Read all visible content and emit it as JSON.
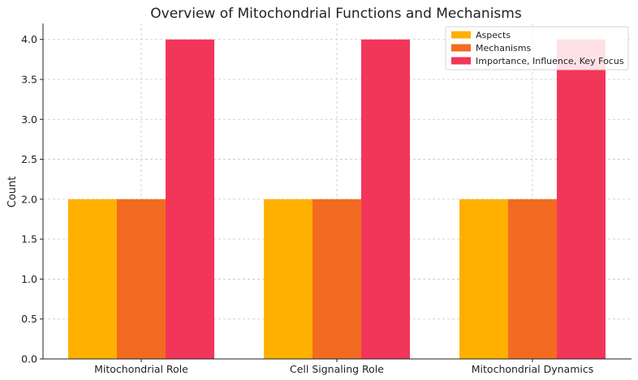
{
  "chart_data": {
    "type": "bar",
    "title": "Overview of Mitochondrial Functions and Mechanisms",
    "xlabel": "",
    "ylabel": "Count",
    "categories": [
      "Mitochondrial Role",
      "Cell Signaling Role",
      "Mitochondrial Dynamics"
    ],
    "series": [
      {
        "name": "Aspects",
        "values": [
          2,
          2,
          2
        ],
        "color": "#FFB000"
      },
      {
        "name": "Mechanisms",
        "values": [
          2,
          2,
          2
        ],
        "color": "#F26B21"
      },
      {
        "name": "Importance, Influence, Key Focus",
        "values": [
          4,
          4,
          4
        ],
        "color": "#F2365A"
      }
    ],
    "ylim": [
      0,
      4.2
    ],
    "yticks": [
      "0.0",
      "0.5",
      "1.0",
      "1.5",
      "2.0",
      "2.5",
      "3.0",
      "3.5",
      "4.0"
    ],
    "grid": true,
    "legend_position": "top-right"
  }
}
